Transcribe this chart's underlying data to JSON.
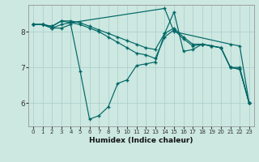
{
  "xlabel": "Humidex (Indice chaleur)",
  "background_color": "#cce8e0",
  "grid_color": "#aacccc",
  "line_color": "#006666",
  "xlim": [
    -0.5,
    23.5
  ],
  "ylim": [
    5.35,
    8.75
  ],
  "yticks": [
    6,
    7,
    8
  ],
  "xtick_labels": [
    "0",
    "1",
    "2",
    "3",
    "4",
    "5",
    "6",
    "7",
    "8",
    "9",
    "10",
    "11",
    "12",
    "13",
    "14",
    "15",
    "16",
    "17",
    "18",
    "19",
    "20",
    "21",
    "22",
    "23"
  ],
  "lines": [
    {
      "x": [
        0,
        1,
        2,
        3,
        4,
        5,
        6,
        7,
        8,
        9,
        10,
        11,
        12,
        13,
        14,
        15,
        16,
        17,
        18,
        19,
        20,
        21,
        22,
        23
      ],
      "y": [
        8.2,
        8.2,
        8.1,
        8.1,
        8.2,
        6.9,
        5.55,
        5.65,
        5.9,
        6.55,
        6.65,
        7.05,
        7.1,
        7.15,
        7.95,
        8.55,
        7.45,
        7.5,
        7.65,
        7.6,
        7.55,
        7.0,
        6.95,
        6.0
      ]
    },
    {
      "x": [
        0,
        1,
        2,
        3,
        4,
        5,
        6,
        7,
        8,
        9,
        10,
        11,
        12,
        13,
        14,
        15,
        16,
        17,
        18,
        19,
        20,
        21,
        22,
        23
      ],
      "y": [
        8.2,
        8.2,
        8.1,
        8.2,
        8.25,
        8.2,
        8.1,
        8.0,
        7.85,
        7.7,
        7.55,
        7.4,
        7.35,
        7.25,
        7.85,
        8.05,
        7.8,
        7.6,
        7.65,
        7.6,
        7.55,
        7.0,
        6.95,
        6.0
      ]
    },
    {
      "x": [
        0,
        1,
        2,
        3,
        4,
        5,
        6,
        7,
        8,
        9,
        10,
        11,
        12,
        13,
        14,
        15,
        16,
        17,
        18,
        19,
        20,
        21,
        22,
        23
      ],
      "y": [
        8.2,
        8.2,
        8.15,
        8.3,
        8.3,
        8.25,
        8.15,
        8.05,
        7.95,
        7.85,
        7.75,
        7.65,
        7.55,
        7.5,
        7.95,
        8.1,
        7.85,
        7.65,
        7.65,
        7.6,
        7.55,
        7.0,
        7.0,
        6.0
      ]
    },
    {
      "x": [
        0,
        1,
        2,
        3,
        4,
        14,
        15,
        21,
        22,
        23
      ],
      "y": [
        8.2,
        8.2,
        8.15,
        8.3,
        8.25,
        8.65,
        8.0,
        7.65,
        7.6,
        6.0
      ]
    }
  ]
}
